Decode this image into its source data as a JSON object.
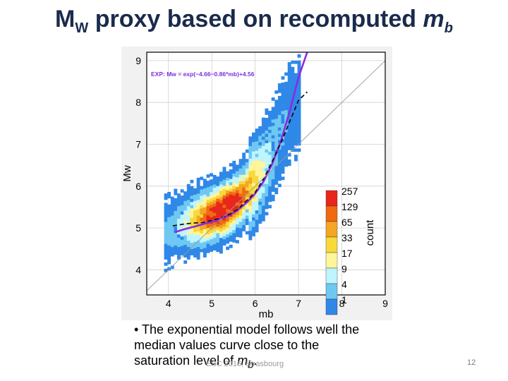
{
  "slide": {
    "title_main": "M",
    "title_sub": "W",
    "title_rest": " proxy based on recomputed ",
    "title_mb": "m",
    "title_mb_sub": "b",
    "bullet_prefix": "• ",
    "bullet_text": "The exponential model follows well the median values curve close to the saturation level of ",
    "bullet_m": "m",
    "bullet_m_sub": "b",
    "bullet_end": ".",
    "footer": "ESC 2016, Strasbourg",
    "page_number": "12"
  },
  "chart_data": {
    "type": "heatmap",
    "xlabel": "mb",
    "ylabel": "Mw",
    "xlim": [
      3.5,
      9
    ],
    "ylim": [
      3.4,
      9.2
    ],
    "x_ticks": [
      "4",
      "5",
      "6",
      "7",
      "8",
      "9"
    ],
    "y_ticks": [
      "4",
      "5",
      "6",
      "7",
      "8",
      "9"
    ],
    "grid": true,
    "annotation": "EXP: Mw = exp(−4.66−0.86*mb)+4.56",
    "annotation_color": "#7b2fe0",
    "colorbar": {
      "label": "count",
      "ticks": [
        "257",
        "129",
        "65",
        "33",
        "17",
        "9",
        "4",
        "1"
      ],
      "colors": [
        "#e8261c",
        "#f06a10",
        "#f5a623",
        "#f8d93a",
        "#fff59a",
        "#bff5ff",
        "#6ec8f2",
        "#2f88e8"
      ]
    },
    "series": [
      {
        "name": "exponential model",
        "color": "#8a2be2",
        "x": [
          4.15,
          4.4,
          4.6,
          4.8,
          5.0,
          5.2,
          5.4,
          5.6,
          5.8,
          6.0,
          6.2,
          6.4,
          6.6,
          6.8,
          7.0,
          7.2
        ],
        "y": [
          4.9,
          4.98,
          5.03,
          5.09,
          5.15,
          5.22,
          5.3,
          5.43,
          5.6,
          5.82,
          6.12,
          6.55,
          7.1,
          7.8,
          8.6,
          9.2
        ]
      },
      {
        "name": "median values",
        "color": "#111111",
        "x": [
          4.1,
          4.4,
          4.6,
          4.8,
          5.0,
          5.2,
          5.4,
          5.6,
          5.8,
          6.0,
          6.2,
          6.4,
          6.6,
          6.8,
          7.0,
          7.2
        ],
        "y": [
          5.05,
          5.1,
          5.12,
          5.13,
          5.18,
          5.24,
          5.32,
          5.45,
          5.65,
          5.85,
          6.18,
          6.6,
          7.05,
          7.55,
          8.05,
          8.25
        ]
      },
      {
        "name": "1:1 line",
        "color": "#9a9a9a",
        "x": [
          3.5,
          9.0
        ],
        "y": [
          3.5,
          9.0
        ]
      }
    ],
    "density_ridge": {
      "x": [
        3.9,
        4.2,
        4.5,
        4.8,
        5.0,
        5.2,
        5.4,
        5.6,
        5.8,
        6.0,
        6.2,
        6.4,
        6.6,
        6.8
      ],
      "y": [
        4.85,
        5.0,
        5.1,
        5.2,
        5.28,
        5.38,
        5.5,
        5.65,
        5.85,
        6.1,
        6.45,
        6.9,
        7.35,
        7.8
      ],
      "peak_count": [
        1,
        4,
        17,
        65,
        257,
        257,
        129,
        65,
        33,
        17,
        9,
        4,
        4,
        1
      ]
    }
  }
}
